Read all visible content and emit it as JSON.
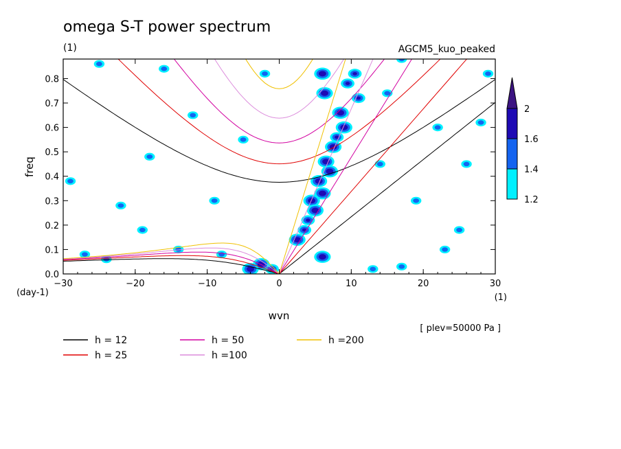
{
  "chart_data": {
    "type": "heatmap",
    "title": "omega S-T power spectrum",
    "subtitle": "(1)",
    "model_label": "AGCM5_kuo_peaked",
    "xlabel": "wvn",
    "ylabel": "freq",
    "x_unit": "(1)",
    "y_unit": "(day-1)",
    "xlim": [
      -30,
      30
    ],
    "ylim": [
      0,
      0.88
    ],
    "xticks": [
      "-30",
      "-20",
      "-10",
      "0",
      "10",
      "20",
      "30"
    ],
    "yticks": [
      "0.0",
      "0.1",
      "0.2",
      "0.3",
      "0.4",
      "0.5",
      "0.6",
      "0.7",
      "0.8"
    ],
    "annotation": "[ plev=50000 Pa ]",
    "colorbar": {
      "levels": [
        "1.2",
        "1.4",
        "1.6",
        "2"
      ],
      "colors": [
        "#00f0ff",
        "#1464f0",
        "#1e0ab4",
        "#3c1482"
      ]
    },
    "dispersion_curves": [
      {
        "name": "h = 12",
        "h": 12,
        "color": "#000000"
      },
      {
        "name": "h = 25",
        "h": 25,
        "color": "#e00000"
      },
      {
        "name": "h = 50",
        "h": 50,
        "color": "#d200a0"
      },
      {
        "name": "h =100",
        "h": 100,
        "color": "#dc8cdc"
      },
      {
        "name": "h =200",
        "h": 200,
        "color": "#f0c000"
      }
    ],
    "power_blobs": [
      {
        "x": 6.0,
        "y": 0.82,
        "level": 3
      },
      {
        "x": 6.3,
        "y": 0.74,
        "level": 3
      },
      {
        "x": 9.5,
        "y": 0.78,
        "level": 2
      },
      {
        "x": 10.5,
        "y": 0.82,
        "level": 2
      },
      {
        "x": 11.0,
        "y": 0.72,
        "level": 2
      },
      {
        "x": 8.5,
        "y": 0.66,
        "level": 3
      },
      {
        "x": 9.0,
        "y": 0.6,
        "level": 3
      },
      {
        "x": 7.5,
        "y": 0.52,
        "level": 3
      },
      {
        "x": 8.0,
        "y": 0.56,
        "level": 2
      },
      {
        "x": 6.5,
        "y": 0.46,
        "level": 3
      },
      {
        "x": 7.0,
        "y": 0.42,
        "level": 3
      },
      {
        "x": 5.5,
        "y": 0.38,
        "level": 3
      },
      {
        "x": 6.0,
        "y": 0.33,
        "level": 3
      },
      {
        "x": 4.5,
        "y": 0.3,
        "level": 3
      },
      {
        "x": 5.0,
        "y": 0.26,
        "level": 3
      },
      {
        "x": 4.0,
        "y": 0.22,
        "level": 2
      },
      {
        "x": 3.5,
        "y": 0.18,
        "level": 2
      },
      {
        "x": 2.5,
        "y": 0.14,
        "level": 3
      },
      {
        "x": 6.0,
        "y": 0.07,
        "level": 3
      },
      {
        "x": -2.5,
        "y": 0.04,
        "level": 3
      },
      {
        "x": -4.0,
        "y": 0.02,
        "level": 3
      },
      {
        "x": -1.0,
        "y": 0.02,
        "level": 2
      },
      {
        "x": 13.0,
        "y": 0.02,
        "level": 1
      },
      {
        "x": 17.0,
        "y": 0.03,
        "level": 1
      },
      {
        "x": -8.0,
        "y": 0.08,
        "level": 1
      },
      {
        "x": -14.0,
        "y": 0.1,
        "level": 1
      },
      {
        "x": -24.0,
        "y": 0.06,
        "level": 1
      },
      {
        "x": -29.0,
        "y": 0.38,
        "level": 1
      },
      {
        "x": -27.0,
        "y": 0.08,
        "level": 1
      },
      {
        "x": -12.0,
        "y": 0.65,
        "level": 1
      },
      {
        "x": -18.0,
        "y": 0.48,
        "level": 1
      },
      {
        "x": -25.0,
        "y": 0.86,
        "level": 1
      },
      {
        "x": -16.0,
        "y": 0.84,
        "level": 1
      },
      {
        "x": -2.0,
        "y": 0.82,
        "level": 1
      },
      {
        "x": -9.0,
        "y": 0.3,
        "level": 1
      },
      {
        "x": -22.0,
        "y": 0.28,
        "level": 1
      },
      {
        "x": 22.0,
        "y": 0.6,
        "level": 1
      },
      {
        "x": 26.0,
        "y": 0.45,
        "level": 1
      },
      {
        "x": 28.0,
        "y": 0.62,
        "level": 1
      },
      {
        "x": 19.0,
        "y": 0.3,
        "level": 1
      },
      {
        "x": 25.0,
        "y": 0.18,
        "level": 1
      },
      {
        "x": 14.0,
        "y": 0.45,
        "level": 1
      },
      {
        "x": 29.0,
        "y": 0.82,
        "level": 1
      },
      {
        "x": 15.0,
        "y": 0.74,
        "level": 1
      },
      {
        "x": -5.0,
        "y": 0.55,
        "level": 1
      },
      {
        "x": 17.0,
        "y": 0.88,
        "level": 1
      },
      {
        "x": 23.0,
        "y": 0.1,
        "level": 1
      },
      {
        "x": -19.0,
        "y": 0.18,
        "level": 1
      }
    ]
  }
}
